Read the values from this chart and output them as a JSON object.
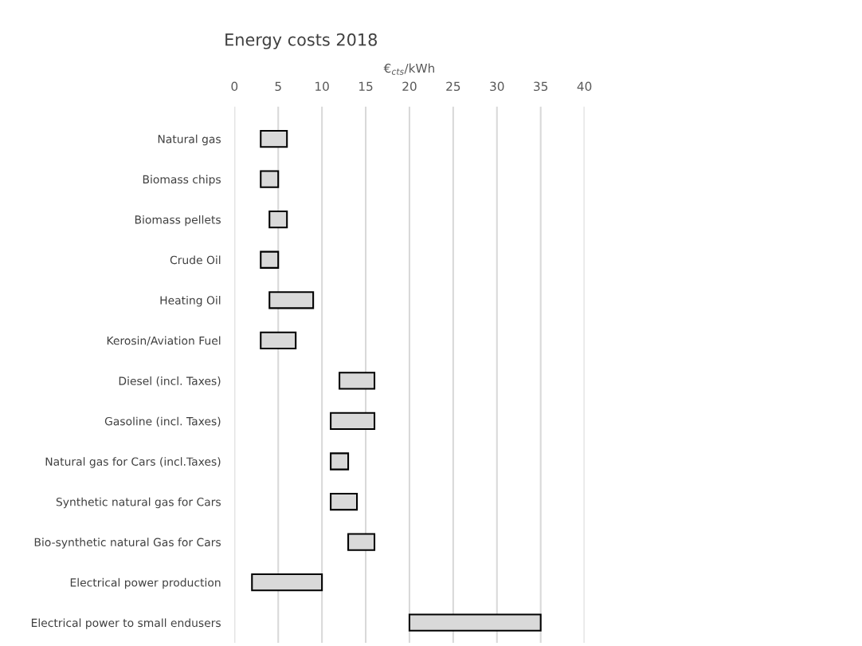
{
  "chart_data": {
    "type": "bar",
    "orientation": "horizontal",
    "title": "Energy costs 2018",
    "xlabel": "€$_{cts}$/kWh",
    "categories": [
      "Natural gas",
      "Biomass chips",
      "Biomass pellets",
      "Crude Oil",
      "Heating Oil",
      "Kerosin/Aviation Fuel",
      "Diesel (incl. Taxes)",
      "Gasoline (incl. Taxes)",
      "Natural gas for Cars (incl.Taxes)",
      "Synthetic natural gas for Cars",
      "Bio-synthetic natural Gas for Cars",
      "Electrical power production",
      "Electrical power to small endusers"
    ],
    "base": [
      3,
      3,
      4,
      3,
      4,
      3,
      12,
      11,
      11,
      11,
      13,
      2,
      20
    ],
    "values": [
      3,
      2,
      2,
      2,
      5,
      4,
      4,
      5,
      2,
      3,
      3,
      8,
      15
    ],
    "color": "#d9d9d9",
    "xlim": [
      0,
      40
    ],
    "xticks": [
      0,
      5,
      10,
      15,
      20,
      25,
      30,
      35,
      40
    ],
    "grid": "x"
  }
}
